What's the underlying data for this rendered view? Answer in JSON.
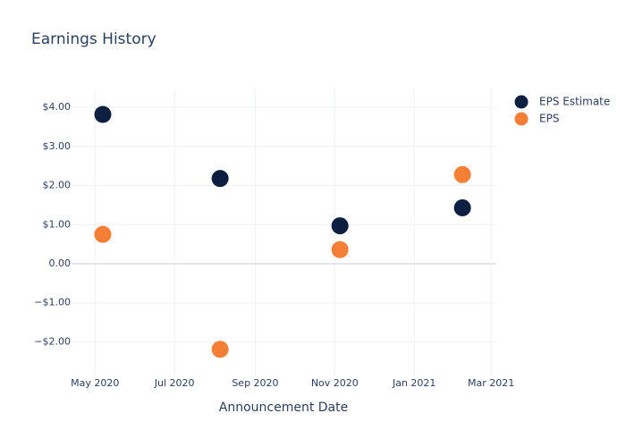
{
  "chart_data": {
    "type": "scatter",
    "title": "Earnings History",
    "x_label": "Announcement Date",
    "x": [
      "2020-05-07",
      "2020-08-05",
      "2020-11-05",
      "2021-02-07"
    ],
    "series": [
      {
        "name": "EPS Estimate",
        "color": "#0b1f40",
        "values": [
          3.82,
          2.18,
          0.97,
          1.43
        ]
      },
      {
        "name": "EPS",
        "color": "#f47f35",
        "values": [
          0.75,
          -2.19,
          0.36,
          2.28
        ]
      }
    ],
    "xlim": [
      "2020-04-13",
      "2021-03-05"
    ],
    "xticks": [
      {
        "value": "2020-05-01",
        "label": "May 2020"
      },
      {
        "value": "2020-07-01",
        "label": "Jul 2020"
      },
      {
        "value": "2020-09-01",
        "label": "Sep 2020"
      },
      {
        "value": "2020-11-01",
        "label": "Nov 2020"
      },
      {
        "value": "2021-01-01",
        "label": "Jan 2021"
      },
      {
        "value": "2021-03-01",
        "label": "Mar 2021"
      }
    ],
    "ylim": [
      -2.86,
      4.46
    ],
    "yticks": [
      {
        "value": -2,
        "label": "−$2.00"
      },
      {
        "value": -1,
        "label": "−$1.00"
      },
      {
        "value": 0,
        "label": "0.00"
      },
      {
        "value": 1,
        "label": "$1.00"
      },
      {
        "value": 2,
        "label": "$2.00"
      },
      {
        "value": 3,
        "label": "$3.00"
      },
      {
        "value": 4,
        "label": "$4.00"
      }
    ],
    "grid": true,
    "legend": "right"
  }
}
